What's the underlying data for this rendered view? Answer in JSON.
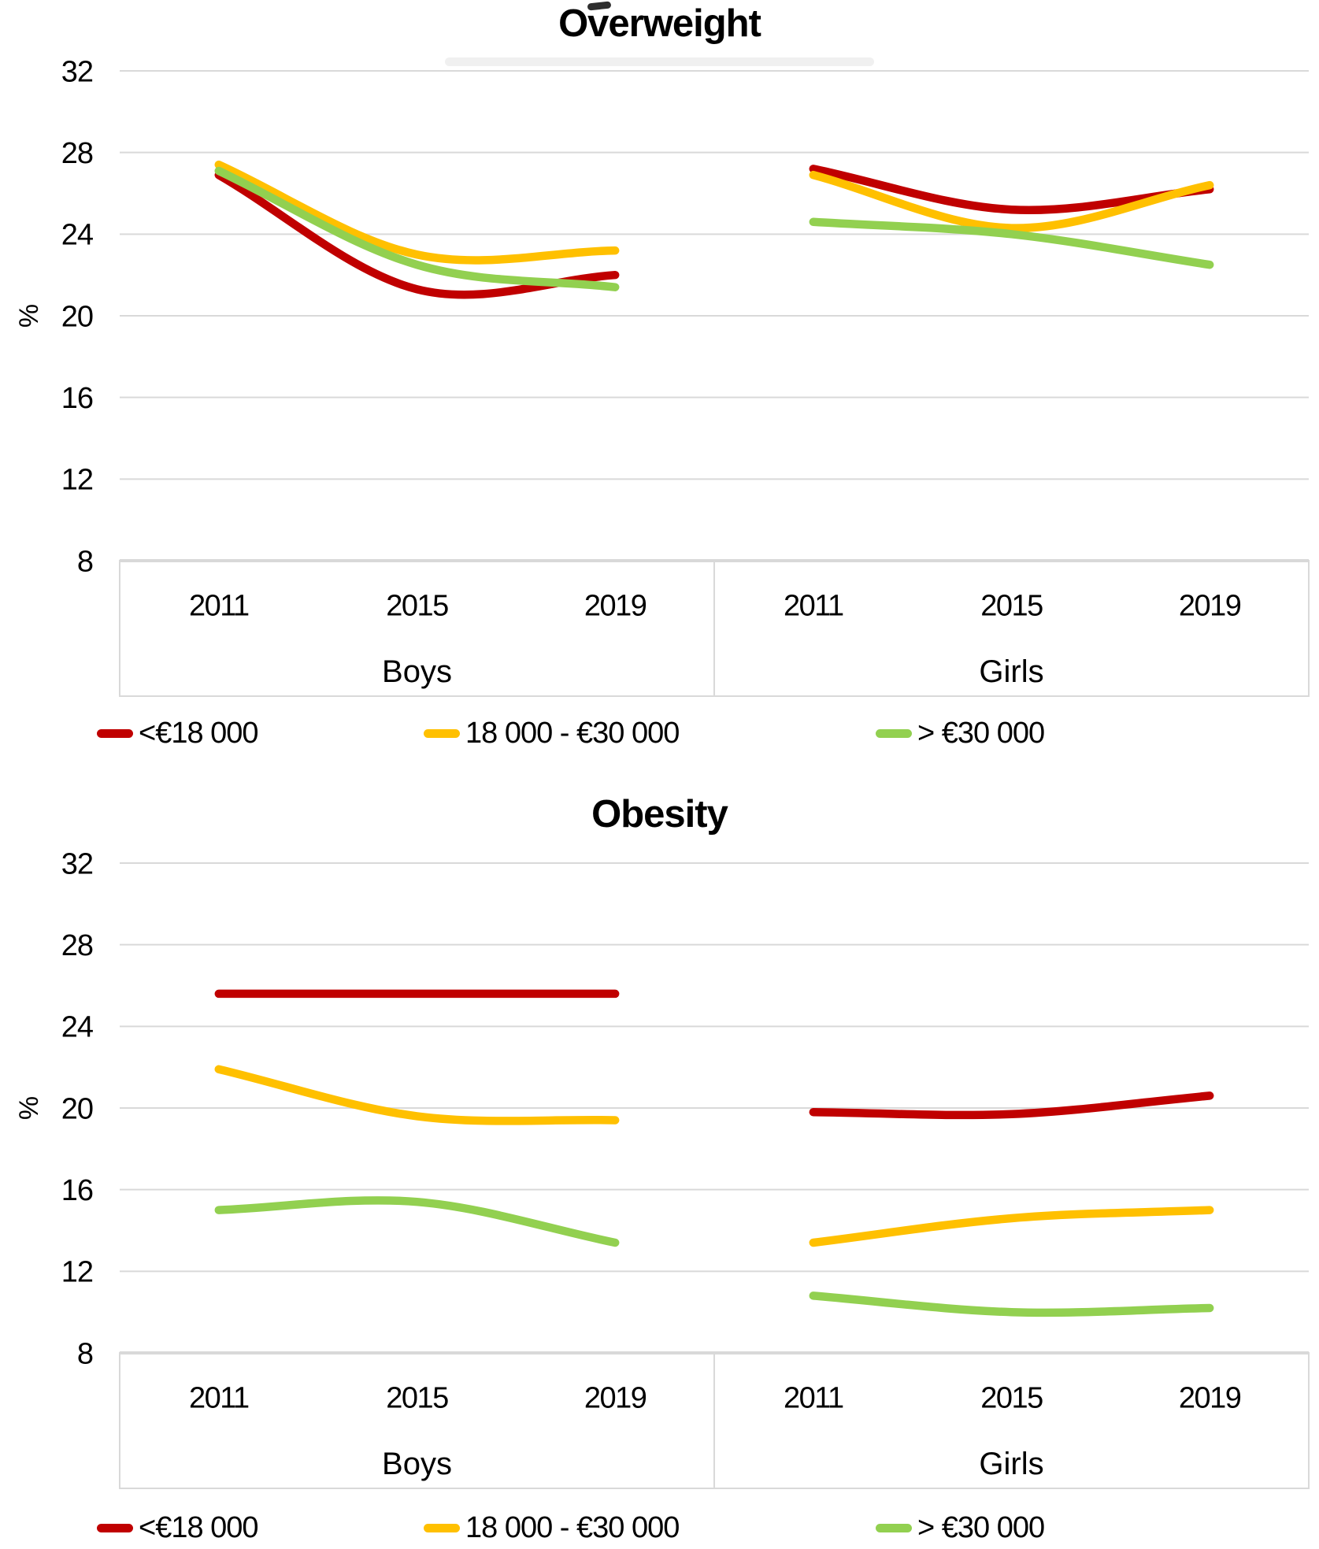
{
  "page": {
    "background": "#ffffff"
  },
  "axis_style": {
    "grid_color": "#D9D9D9",
    "axis_line_color": "#D9D9D9",
    "text_color": "#000000"
  },
  "chart_data": [
    {
      "type": "line",
      "title": "Overweight",
      "ylabel": "%",
      "ylim": [
        8,
        32
      ],
      "y_ticks": [
        32,
        28,
        24,
        20,
        16,
        12,
        8
      ],
      "x_categories": [
        "2011",
        "2015",
        "2019"
      ],
      "line_style": "smooth",
      "grid": true,
      "legend_position": "bottom",
      "legend": [
        {
          "label": "<€18 000",
          "color": "#C00000"
        },
        {
          "label": "18 000 - €30 000",
          "color": "#FFC000"
        },
        {
          "label": "> €30 000",
          "color": "#92D050"
        }
      ],
      "panels": [
        {
          "name": "Boys",
          "series": [
            {
              "name": "<€18 000",
              "color": "#C00000",
              "values": [
                26.9,
                21.3,
                22.0
              ]
            },
            {
              "name": "18 000 - €30 000",
              "color": "#FFC000",
              "values": [
                27.4,
                23.0,
                23.2
              ]
            },
            {
              "name": "> €30 000",
              "color": "#92D050",
              "values": [
                27.1,
                22.5,
                21.4
              ]
            }
          ]
        },
        {
          "name": "Girls",
          "series": [
            {
              "name": "<€18 000",
              "color": "#C00000",
              "values": [
                27.2,
                25.2,
                26.2
              ]
            },
            {
              "name": "18 000 - €30 000",
              "color": "#FFC000",
              "values": [
                26.9,
                24.3,
                26.4
              ]
            },
            {
              "name": "> €30 000",
              "color": "#92D050",
              "values": [
                24.6,
                24.0,
                22.5
              ]
            }
          ]
        }
      ]
    },
    {
      "type": "line",
      "title": "Obesity",
      "ylabel": "%",
      "ylim": [
        8,
        32
      ],
      "y_ticks": [
        32,
        28,
        24,
        20,
        16,
        12,
        8
      ],
      "x_categories": [
        "2011",
        "2015",
        "2019"
      ],
      "line_style": "smooth",
      "grid": true,
      "legend_position": "bottom",
      "legend": [
        {
          "label": "<€18 000",
          "color": "#C00000"
        },
        {
          "label": "18 000 - €30 000",
          "color": "#FFC000"
        },
        {
          "label": "> €30 000",
          "color": "#92D050"
        }
      ],
      "panels": [
        {
          "name": "Boys",
          "series": [
            {
              "name": "<€18 000",
              "color": "#C00000",
              "values": [
                25.6,
                25.6,
                25.6
              ]
            },
            {
              "name": "18 000 - €30 000",
              "color": "#FFC000",
              "values": [
                21.9,
                19.6,
                19.4
              ]
            },
            {
              "name": "> €30 000",
              "color": "#92D050",
              "values": [
                15.0,
                15.4,
                13.4
              ]
            }
          ]
        },
        {
          "name": "Girls",
          "series": [
            {
              "name": "<€18 000",
              "color": "#C00000",
              "values": [
                19.8,
                19.7,
                20.6
              ]
            },
            {
              "name": "18 000 - €30 000",
              "color": "#FFC000",
              "values": [
                13.4,
                14.6,
                15.0
              ]
            },
            {
              "name": "> €30 000",
              "color": "#92D050",
              "values": [
                10.8,
                10.0,
                10.2
              ]
            }
          ]
        }
      ]
    }
  ]
}
